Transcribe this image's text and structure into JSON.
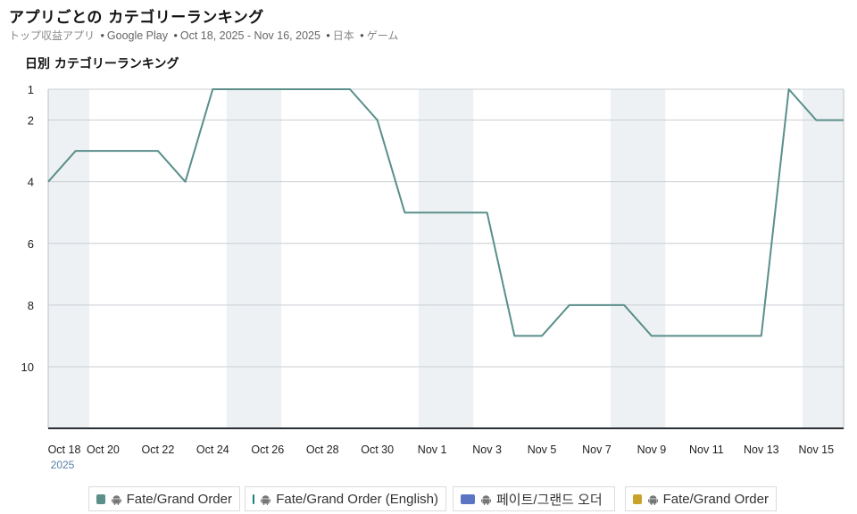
{
  "header": {
    "title": "アプリごとの カテゴリーランキング",
    "subtitle_store_type": "トップ収益アプリ",
    "subtitle_store": "Google Play",
    "subtitle_range": "Oct 18, 2025 - Nov 16, 2025",
    "subtitle_country": "日本",
    "subtitle_category": "ゲーム",
    "separator": "•"
  },
  "chart_data": {
    "type": "line",
    "title": "日別 カテゴリーランキング",
    "x": [
      "2025-10-18",
      "2025-10-19",
      "2025-10-20",
      "2025-10-21",
      "2025-10-22",
      "2025-10-23",
      "2025-10-24",
      "2025-10-25",
      "2025-10-26",
      "2025-10-27",
      "2025-10-28",
      "2025-10-29",
      "2025-10-30",
      "2025-10-31",
      "2025-11-01",
      "2025-11-02",
      "2025-11-03",
      "2025-11-04",
      "2025-11-05",
      "2025-11-06",
      "2025-11-07",
      "2025-11-08",
      "2025-11-09",
      "2025-11-10",
      "2025-11-11",
      "2025-11-12",
      "2025-11-13",
      "2025-11-14",
      "2025-11-15",
      "2025-11-16"
    ],
    "x_tick_labels": [
      "Oct 18",
      "Oct 20",
      "Oct 22",
      "Oct 24",
      "Oct 26",
      "Oct 28",
      "Oct 30",
      "Nov 1",
      "Nov 3",
      "Nov 5",
      "Nov 7",
      "Nov 9",
      "Nov 11",
      "Nov 13",
      "Nov 15"
    ],
    "x_year_label": "2025",
    "series": [
      {
        "name": "Fate/Grand Order",
        "color": "#5a8f8a",
        "values": [
          4,
          3,
          3,
          3,
          3,
          4,
          1,
          1,
          1,
          1,
          1,
          1,
          2,
          5,
          5,
          5,
          5,
          9,
          9,
          8,
          8,
          8,
          9,
          9,
          9,
          9,
          9,
          1,
          2,
          2
        ]
      }
    ],
    "y_ticks": [
      1,
      2,
      4,
      6,
      8,
      10
    ],
    "ylim": [
      1,
      12
    ],
    "y_inverted": true,
    "weekend_shading": true,
    "grid": true
  },
  "legend": [
    {
      "name": "Fate/Grand Order",
      "color": "#5a8f8a",
      "platform_icon": "android-icon"
    },
    {
      "name": "Fate/Grand Order (English)",
      "color": "#1a7f79",
      "platform_icon": "android-icon"
    },
    {
      "name": "페이트/그랜드 오더",
      "color": "#5b74c4",
      "platform_icon": "android-icon"
    },
    {
      "name": "Fate/Grand Order",
      "color": "#c9a22a",
      "platform_icon": "android-icon"
    }
  ]
}
